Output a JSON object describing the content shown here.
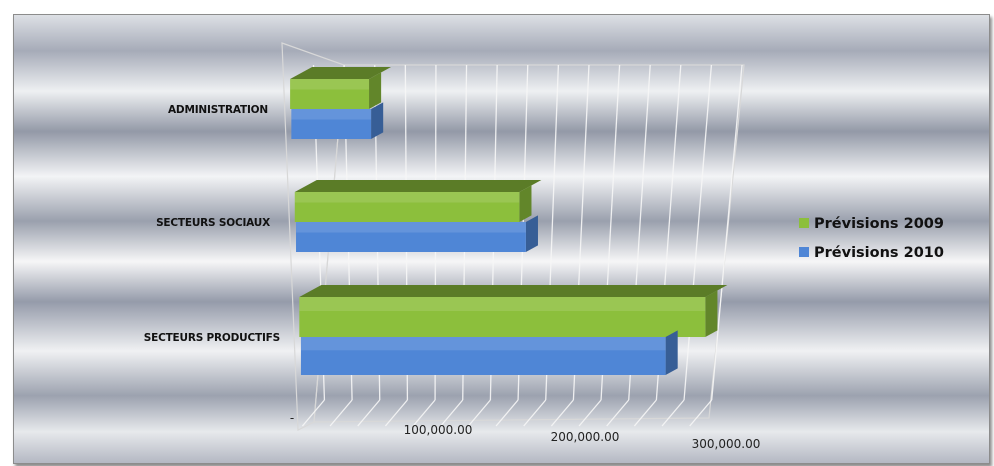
{
  "chart_data": {
    "type": "bar",
    "orientation": "horizontal",
    "style": "3d",
    "categories": [
      "ADMINISTRATION",
      "SECTEURS SOCIAUX",
      "SECTEURS PRODUCTIFS"
    ],
    "series": [
      {
        "name": "Prévisions 2009",
        "color": "#8cbf3c",
        "values": [
          52000,
          153000,
          286000
        ]
      },
      {
        "name": "Prévisions 2010",
        "color": "#4f86d6",
        "values": [
          53000,
          158000,
          260000
        ]
      }
    ],
    "x_ticks": [
      "-",
      "100,000.00",
      "200,000.00",
      "300,000.00"
    ],
    "x_tick_values": [
      0,
      100000,
      200000,
      300000
    ],
    "xlim": [
      0,
      300000
    ],
    "grid": true,
    "legend_position": "right"
  }
}
